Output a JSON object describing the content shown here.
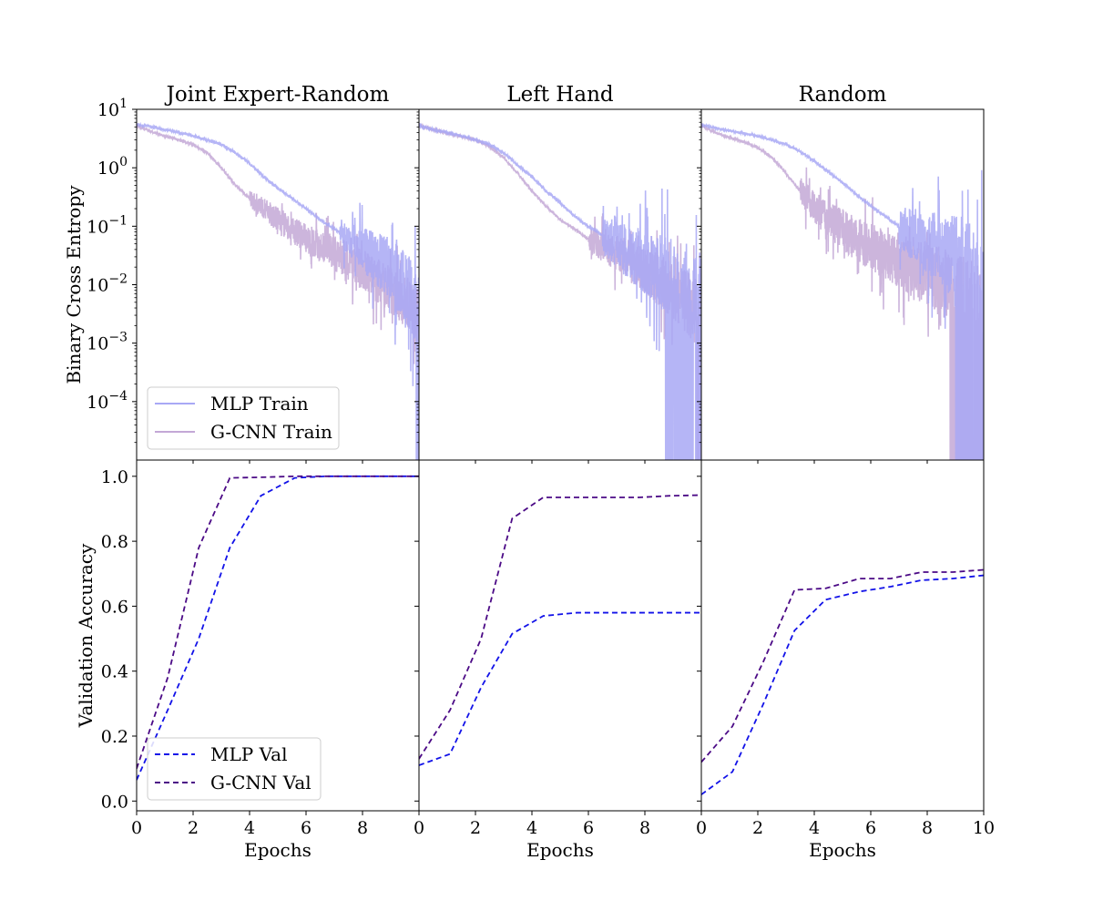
{
  "chart_data": {
    "type": "line",
    "layout": "2 rows x 3 columns grid, shared x axis per column",
    "columns": [
      "Joint Expert-Random",
      "Left Hand",
      "Random"
    ],
    "x_axis": {
      "label": "Epochs",
      "range": [
        0,
        10
      ],
      "ticks_first_columns": [
        "0",
        "2",
        "4",
        "6",
        "8"
      ],
      "ticks_last_column": [
        "0",
        "2",
        "4",
        "6",
        "8",
        "10"
      ]
    },
    "top_row": {
      "ylabel": "Binary Cross Entropy",
      "yscale": "log",
      "ylim": [
        1e-05,
        10
      ],
      "y_ticks": [
        {
          "label_base": "10",
          "label_exp": "1",
          "value": 10
        },
        {
          "label_base": "10",
          "label_exp": "0",
          "value": 1
        },
        {
          "label_base": "10",
          "label_exp": "−1",
          "value": 0.1
        },
        {
          "label_base": "10",
          "label_exp": "−2",
          "value": 0.01
        },
        {
          "label_base": "10",
          "label_exp": "−3",
          "value": 0.001
        },
        {
          "label_base": "10",
          "label_exp": "−4",
          "value": 0.0001
        }
      ],
      "legend": {
        "placement": "lower-left",
        "entries": [
          {
            "name": "MLP Train",
            "color": "#a8a8f5"
          },
          {
            "name": "G-CNN Train",
            "color": "#c3a8d6"
          }
        ]
      },
      "panels": [
        {
          "title": "Joint Expert-Random",
          "series": [
            {
              "name": "MLP Train",
              "color": "#a8a8f5",
              "points": [
                [
                  0,
                  5.5
                ],
                [
                  0.5,
                  5.0
                ],
                [
                  1,
                  4.5
                ],
                [
                  1.5,
                  4.0
                ],
                [
                  2,
                  3.5
                ],
                [
                  2.5,
                  3.0
                ],
                [
                  3,
                  2.5
                ],
                [
                  3.5,
                  1.8
                ],
                [
                  4,
                  1.2
                ],
                [
                  4.5,
                  0.7
                ],
                [
                  5,
                  0.45
                ],
                [
                  5.5,
                  0.3
                ],
                [
                  6,
                  0.2
                ],
                [
                  6.5,
                  0.13
                ],
                [
                  7,
                  0.09
                ],
                [
                  7.5,
                  0.06
                ],
                [
                  8,
                  0.04
                ],
                [
                  8.5,
                  0.028
                ],
                [
                  9,
                  0.018
                ],
                [
                  9.5,
                  0.01
                ],
                [
                  9.9,
                  0.004
                ]
              ],
              "noise_start": 7.2,
              "noise_amp_log": 0.7,
              "drop_start": 9.9
            },
            {
              "name": "G-CNN Train",
              "color": "#c3a8d6",
              "points": [
                [
                  0,
                  5.3
                ],
                [
                  0.5,
                  4.2
                ],
                [
                  1,
                  3.5
                ],
                [
                  1.5,
                  3.0
                ],
                [
                  2,
                  2.5
                ],
                [
                  2.5,
                  1.8
                ],
                [
                  3,
                  1.0
                ],
                [
                  3.5,
                  0.5
                ],
                [
                  4,
                  0.3
                ],
                [
                  4.5,
                  0.2
                ],
                [
                  5,
                  0.13
                ],
                [
                  5.5,
                  0.09
                ],
                [
                  6,
                  0.06
                ],
                [
                  6.5,
                  0.045
                ],
                [
                  7,
                  0.035
                ],
                [
                  7.5,
                  0.025
                ],
                [
                  8,
                  0.018
                ],
                [
                  8.5,
                  0.012
                ],
                [
                  9,
                  0.008
                ],
                [
                  9.5,
                  0.005
                ],
                [
                  10,
                  0.003
                ]
              ],
              "noise_start": 4.0,
              "noise_amp_log": 0.45,
              "drop_start": 10.5
            }
          ]
        },
        {
          "title": "Left Hand",
          "series": [
            {
              "name": "MLP Train",
              "color": "#a8a8f5",
              "points": [
                [
                  0,
                  5.3
                ],
                [
                  0.5,
                  4.5
                ],
                [
                  1,
                  4.0
                ],
                [
                  1.5,
                  3.5
                ],
                [
                  2,
                  3.0
                ],
                [
                  2.5,
                  2.5
                ],
                [
                  3,
                  1.8
                ],
                [
                  3.5,
                  1.1
                ],
                [
                  4,
                  0.7
                ],
                [
                  4.5,
                  0.4
                ],
                [
                  5,
                  0.25
                ],
                [
                  5.5,
                  0.15
                ],
                [
                  6,
                  0.1
                ],
                [
                  6.5,
                  0.07
                ],
                [
                  7,
                  0.05
                ],
                [
                  7.5,
                  0.035
                ],
                [
                  8,
                  0.025
                ],
                [
                  8.5,
                  0.018
                ],
                [
                  9,
                  0.012
                ],
                [
                  9.5,
                  0.008
                ],
                [
                  10,
                  0.005
                ]
              ],
              "noise_start": 6.5,
              "noise_amp_log": 0.9,
              "drop_start": 8.7
            },
            {
              "name": "G-CNN Train",
              "color": "#c3a8d6",
              "points": [
                [
                  0,
                  5.3
                ],
                [
                  0.5,
                  4.5
                ],
                [
                  1,
                  3.9
                ],
                [
                  1.5,
                  3.4
                ],
                [
                  2,
                  3.0
                ],
                [
                  2.5,
                  2.3
                ],
                [
                  3,
                  1.5
                ],
                [
                  3.5,
                  0.8
                ],
                [
                  4,
                  0.4
                ],
                [
                  4.5,
                  0.22
                ],
                [
                  5,
                  0.13
                ],
                [
                  5.5,
                  0.09
                ],
                [
                  6,
                  0.06
                ],
                [
                  6.5,
                  0.045
                ],
                [
                  7,
                  0.035
                ],
                [
                  7.5,
                  0.025
                ],
                [
                  8,
                  0.018
                ],
                [
                  8.5,
                  0.012
                ],
                [
                  9,
                  0.008
                ],
                [
                  9.5,
                  0.005
                ],
                [
                  10,
                  0.003
                ]
              ],
              "noise_start": 6.0,
              "noise_amp_log": 0.6,
              "drop_start": 9.8
            }
          ]
        },
        {
          "title": "Random",
          "series": [
            {
              "name": "MLP Train",
              "color": "#a8a8f5",
              "points": [
                [
                  0,
                  5.5
                ],
                [
                  0.5,
                  4.8
                ],
                [
                  1,
                  4.3
                ],
                [
                  1.5,
                  3.9
                ],
                [
                  2,
                  3.5
                ],
                [
                  2.5,
                  3.0
                ],
                [
                  3,
                  2.5
                ],
                [
                  3.5,
                  1.9
                ],
                [
                  4,
                  1.3
                ],
                [
                  4.5,
                  0.85
                ],
                [
                  5,
                  0.55
                ],
                [
                  5.5,
                  0.35
                ],
                [
                  6,
                  0.22
                ],
                [
                  6.5,
                  0.15
                ],
                [
                  7,
                  0.1
                ],
                [
                  7.5,
                  0.07
                ],
                [
                  8,
                  0.05
                ],
                [
                  8.5,
                  0.035
                ],
                [
                  9,
                  0.025
                ],
                [
                  9.5,
                  0.018
                ],
                [
                  10,
                  0.012
                ]
              ],
              "noise_start": 7.0,
              "noise_amp_log": 1.0,
              "drop_start": 9.0
            },
            {
              "name": "G-CNN Train",
              "color": "#c3a8d6",
              "points": [
                [
                  0,
                  5.3
                ],
                [
                  0.5,
                  4.0
                ],
                [
                  1,
                  3.3
                ],
                [
                  1.5,
                  2.8
                ],
                [
                  2,
                  2.2
                ],
                [
                  2.5,
                  1.5
                ],
                [
                  3,
                  0.8
                ],
                [
                  3.5,
                  0.4
                ],
                [
                  4,
                  0.22
                ],
                [
                  4.5,
                  0.13
                ],
                [
                  5,
                  0.09
                ],
                [
                  5.5,
                  0.06
                ],
                [
                  6,
                  0.045
                ],
                [
                  6.5,
                  0.035
                ],
                [
                  7,
                  0.027
                ],
                [
                  7.5,
                  0.02
                ],
                [
                  8,
                  0.015
                ],
                [
                  8.5,
                  0.011
                ],
                [
                  9,
                  0.008
                ],
                [
                  9.5,
                  0.006
                ],
                [
                  10,
                  0.004
                ]
              ],
              "noise_start": 3.5,
              "noise_amp_log": 0.7,
              "drop_start": 8.8
            }
          ]
        }
      ]
    },
    "bottom_row": {
      "ylabel": "Validation Accuracy",
      "yscale": "linear",
      "ylim": [
        -0.03,
        1.05
      ],
      "y_ticks": [
        "0.0",
        "0.2",
        "0.4",
        "0.6",
        "0.8",
        "1.0"
      ],
      "legend": {
        "placement": "lower-left",
        "entries": [
          {
            "name": "MLP Val",
            "color": "#1212e8"
          },
          {
            "name": "G-CNN Val",
            "color": "#4b0a86"
          }
        ]
      },
      "panels": [
        {
          "title": "Joint Expert-Random",
          "series": [
            {
              "name": "MLP Val",
              "color": "#1212e8",
              "style": "dashed",
              "x": [
                0,
                1.1,
                2.2,
                3.3,
                4.4,
                5.6,
                6.7,
                7.8,
                8.9,
                10
              ],
              "y": [
                0.065,
                0.28,
                0.5,
                0.78,
                0.94,
                0.995,
                1.0,
                1.0,
                1.0,
                1.0
              ]
            },
            {
              "name": "G-CNN Val",
              "color": "#4b0a86",
              "style": "dashed",
              "x": [
                0,
                1.1,
                2.2,
                3.3,
                4.4,
                5.6,
                6.7,
                7.8,
                8.9,
                10
              ],
              "y": [
                0.1,
                0.38,
                0.78,
                0.995,
                0.997,
                1.0,
                1.0,
                1.0,
                1.0,
                1.0
              ]
            }
          ]
        },
        {
          "title": "Left Hand",
          "series": [
            {
              "name": "MLP Val",
              "color": "#1212e8",
              "style": "dashed",
              "x": [
                0,
                1.1,
                2.2,
                3.3,
                4.4,
                5.6,
                6.7,
                7.8,
                8.9,
                10
              ],
              "y": [
                0.11,
                0.145,
                0.35,
                0.515,
                0.57,
                0.58,
                0.58,
                0.58,
                0.58,
                0.58
              ]
            },
            {
              "name": "G-CNN Val",
              "color": "#4b0a86",
              "style": "dashed",
              "x": [
                0,
                1.1,
                2.2,
                3.3,
                4.4,
                5.6,
                6.7,
                7.8,
                8.9,
                10
              ],
              "y": [
                0.13,
                0.28,
                0.5,
                0.87,
                0.935,
                0.935,
                0.935,
                0.935,
                0.94,
                0.942
              ]
            }
          ]
        },
        {
          "title": "Random",
          "series": [
            {
              "name": "MLP Val",
              "color": "#1212e8",
              "style": "dashed",
              "x": [
                0,
                1.1,
                2.2,
                3.3,
                4.4,
                5.6,
                6.7,
                7.8,
                8.9,
                10
              ],
              "y": [
                0.02,
                0.09,
                0.3,
                0.525,
                0.62,
                0.645,
                0.66,
                0.68,
                0.685,
                0.695
              ]
            },
            {
              "name": "G-CNN Val",
              "color": "#4b0a86",
              "style": "dashed",
              "x": [
                0,
                1.1,
                2.2,
                3.3,
                4.4,
                5.6,
                6.7,
                7.8,
                8.9,
                10
              ],
              "y": [
                0.12,
                0.23,
                0.43,
                0.65,
                0.655,
                0.685,
                0.685,
                0.705,
                0.705,
                0.712
              ]
            }
          ]
        }
      ]
    }
  }
}
